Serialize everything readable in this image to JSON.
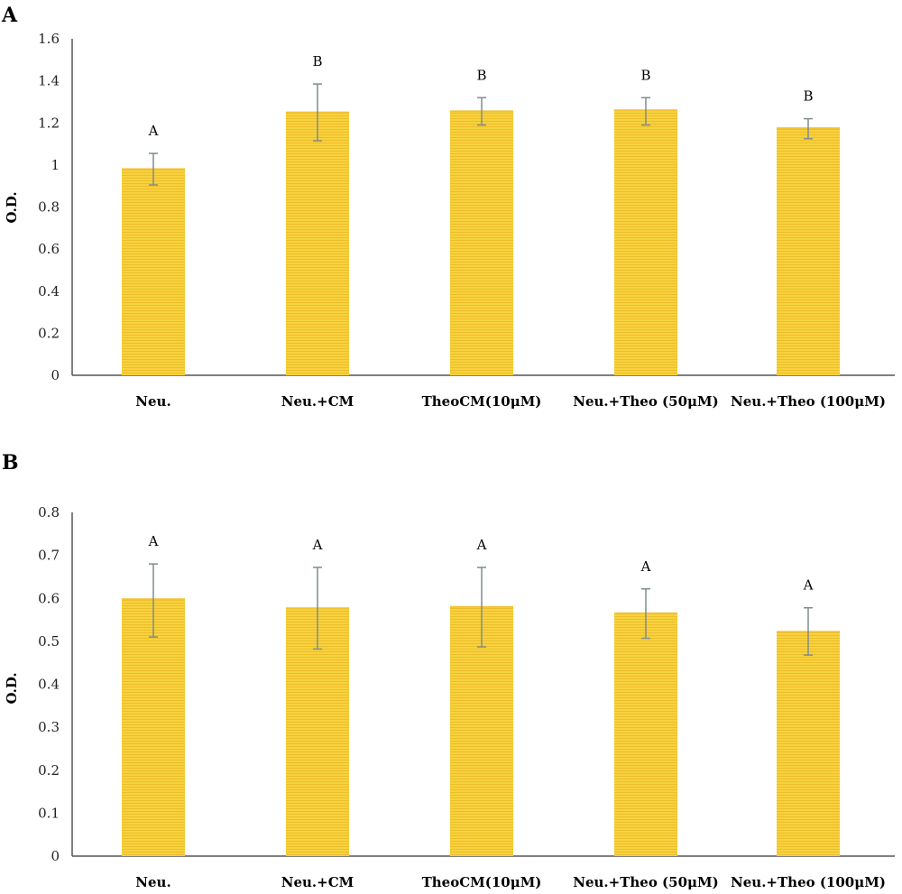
{
  "chart_data": [
    {
      "panel": "A",
      "type": "bar",
      "ylabel": "O.D.",
      "ylim": [
        0,
        1.6
      ],
      "yticks": [
        "0",
        "0.2",
        "0.4",
        "0.6",
        "0.8",
        "1",
        "1.2",
        "1.4",
        "1.6"
      ],
      "categories": [
        "Neu.",
        "Neu.+CM",
        "TheoCM(10μM)",
        "Neu.+Theo (50μM)",
        "Neu.+Theo (100μM)"
      ],
      "values": [
        0.98,
        1.25,
        1.255,
        1.26,
        1.175
      ],
      "error_low": [
        0.905,
        1.115,
        1.19,
        1.19,
        1.125
      ],
      "error_high": [
        1.055,
        1.385,
        1.32,
        1.32,
        1.22
      ],
      "significance": [
        "A",
        "B",
        "B",
        "B",
        "B"
      ],
      "bar_color": "#f7d23e",
      "grid": false
    },
    {
      "panel": "B",
      "type": "bar",
      "ylabel": "O.D.",
      "ylim": [
        0,
        0.8
      ],
      "yticks": [
        "0",
        "0.1",
        "0.2",
        "0.3",
        "0.4",
        "0.5",
        "0.6",
        "0.7",
        "0.8"
      ],
      "categories": [
        "Neu.",
        "Neu.+CM",
        "TheoCM(10μM)",
        "Neu.+Theo (50μM)",
        "Neu.+Theo (100μM)"
      ],
      "values": [
        0.598,
        0.577,
        0.58,
        0.565,
        0.522
      ],
      "error_low": [
        0.51,
        0.482,
        0.487,
        0.507,
        0.468
      ],
      "error_high": [
        0.68,
        0.672,
        0.672,
        0.622,
        0.578
      ],
      "significance": [
        "A",
        "A",
        "A",
        "A",
        "A"
      ],
      "bar_color": "#f7d23e",
      "grid": false
    }
  ]
}
